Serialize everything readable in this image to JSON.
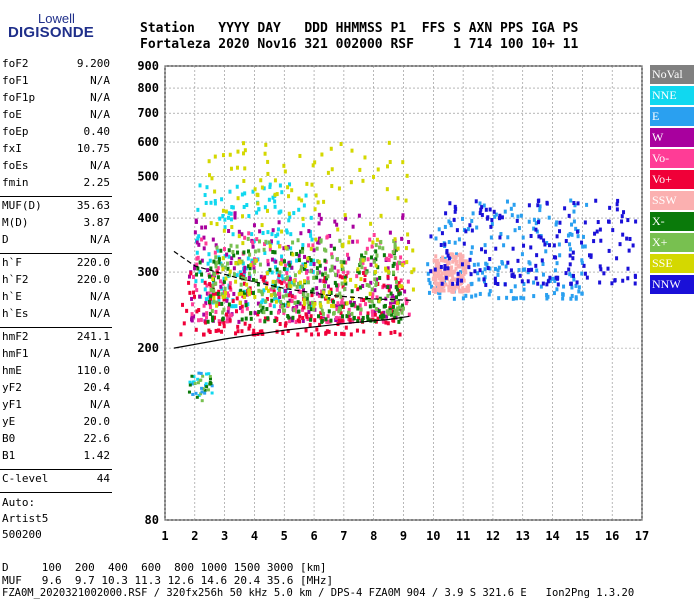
{
  "logo": {
    "word": "Lowell",
    "brand": "DIGISONDE"
  },
  "header": {
    "line1": "Station   YYYY DAY   DDD HHMMSS P1  FFS S AXN PPS IGA PS",
    "line2": "Fortaleza 2020 Nov16 321 002000 RSF     1 714 100 10+ 11"
  },
  "params": {
    "group1": [
      {
        "name": "foF2",
        "value": "9.200"
      },
      {
        "name": "foF1",
        "value": "N/A"
      },
      {
        "name": "foF1p",
        "value": "N/A"
      },
      {
        "name": "foE",
        "value": "N/A"
      },
      {
        "name": "foEp",
        "value": "0.40"
      },
      {
        "name": "fxI",
        "value": "10.75"
      },
      {
        "name": "foEs",
        "value": "N/A"
      },
      {
        "name": "fmin",
        "value": "2.25"
      }
    ],
    "group2": [
      {
        "name": "MUF(D)",
        "value": "35.63"
      },
      {
        "name": "M(D)",
        "value": "3.87"
      },
      {
        "name": "D",
        "value": "N/A"
      }
    ],
    "group3": [
      {
        "name": "h`F",
        "value": "220.0"
      },
      {
        "name": "h`F2",
        "value": "220.0"
      },
      {
        "name": "h`E",
        "value": "N/A"
      },
      {
        "name": "h`Es",
        "value": "N/A"
      }
    ],
    "group4": [
      {
        "name": "hmF2",
        "value": "241.1"
      },
      {
        "name": "hmF1",
        "value": "N/A"
      },
      {
        "name": "hmE",
        "value": "110.0"
      },
      {
        "name": "yF2",
        "value": "20.4"
      },
      {
        "name": "yF1",
        "value": "N/A"
      },
      {
        "name": "yE",
        "value": "20.0"
      },
      {
        "name": "B0",
        "value": "22.6"
      },
      {
        "name": "B1",
        "value": "1.42"
      }
    ],
    "clevel": {
      "name": "C-level",
      "value": "44"
    },
    "auto": [
      "Auto:",
      "Artist5",
      "500200"
    ]
  },
  "legend": [
    {
      "label": "NoVal",
      "color": "#808080"
    },
    {
      "label": "NNE",
      "color": "#10d8f0"
    },
    {
      "label": "E",
      "color": "#2aa0f0"
    },
    {
      "label": "W",
      "color": "#a8009e"
    },
    {
      "label": "Vo-",
      "color": "#ff3c96"
    },
    {
      "label": "Vo+",
      "color": "#f00038"
    },
    {
      "label": "SSW",
      "color": "#fbb0b0"
    },
    {
      "label": "X-",
      "color": "#0a7a0a"
    },
    {
      "label": "X+",
      "color": "#78c050"
    },
    {
      "label": "SSE",
      "color": "#d4d800"
    },
    {
      "label": "NNW",
      "color": "#1a10d8"
    }
  ],
  "chart_data": {
    "type": "scatter",
    "xlabel": "",
    "ylabel": "",
    "xlim": [
      1,
      17
    ],
    "ylim": [
      80,
      900
    ],
    "yscale": "log",
    "x_ticks": [
      1,
      2,
      3,
      4,
      5,
      6,
      7,
      8,
      9,
      10,
      11,
      12,
      13,
      14,
      15,
      16,
      17
    ],
    "y_ticks": [
      80,
      200,
      300,
      400,
      500,
      600,
      700,
      800,
      900
    ],
    "grid": true,
    "clusters": [
      {
        "name": "NNE",
        "color": "#10d8f0",
        "x": [
          2.0,
          6.0
        ],
        "y": [
          250,
          480
        ]
      },
      {
        "name": "E",
        "color": "#2aa0f0",
        "x": [
          9.8,
          15.2
        ],
        "y": [
          260,
          440
        ]
      },
      {
        "name": "W",
        "color": "#a8009e",
        "x": [
          1.8,
          9.2
        ],
        "y": [
          230,
          420
        ]
      },
      {
        "name": "Vo-",
        "color": "#ff3c96",
        "x": [
          1.8,
          9.2
        ],
        "y": [
          230,
          370
        ]
      },
      {
        "name": "Vo+",
        "color": "#f00038",
        "x": [
          1.5,
          9.0
        ],
        "y": [
          215,
          300
        ]
      },
      {
        "name": "SSW",
        "color": "#fbb0b0",
        "x": [
          10.0,
          11.2
        ],
        "y": [
          270,
          330
        ]
      },
      {
        "name": "X-",
        "color": "#0a7a0a",
        "x": [
          2.0,
          9.0
        ],
        "y": [
          230,
          340
        ]
      },
      {
        "name": "X+",
        "color": "#78c050",
        "x": [
          2.5,
          9.0
        ],
        "y": [
          240,
          360
        ]
      },
      {
        "name": "SSE",
        "color": "#d4d800",
        "x": [
          2.3,
          9.5
        ],
        "y": [
          250,
          600
        ]
      },
      {
        "name": "NNW",
        "color": "#1a10d8",
        "x": [
          9.9,
          16.8
        ],
        "y": [
          280,
          440
        ]
      }
    ],
    "low_echoes": {
      "x": [
        1.8,
        2.6
      ],
      "y": [
        150,
        175
      ]
    },
    "profile_upper": {
      "x": [
        1.3,
        2.0,
        3.5,
        5.0,
        6.5,
        8.0,
        9.3
      ],
      "y": [
        335,
        310,
        290,
        275,
        265,
        260,
        258
      ]
    },
    "profile_lower": {
      "x": [
        1.3,
        3.0,
        5.0,
        7.0,
        8.5,
        9.2
      ],
      "y": [
        200,
        210,
        220,
        228,
        233,
        237
      ]
    }
  },
  "footer": {
    "line1": "D     100  200  400  600  800 1000 1500 3000 [km]",
    "line2": "MUF   9.6  9.7 10.3 11.3 12.6 14.6 20.4 35.6 [MHz]",
    "line3": "FZA0M_2020321002000.RSF / 320fx256h 50 kHz 5.0 km / DPS-4 FZA0M 904 / 3.9 S 321.6 E   Ion2Png 1.3.20"
  }
}
